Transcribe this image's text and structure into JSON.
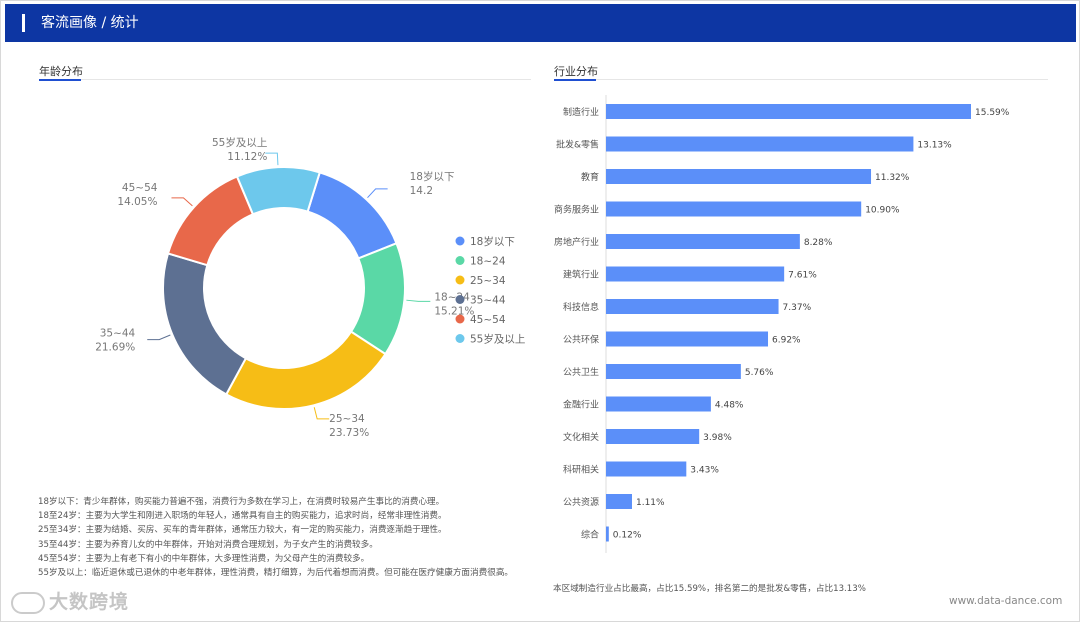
{
  "header": {
    "title": "客流画像 / 统计"
  },
  "left_section": {
    "title": "年龄分布"
  },
  "right_section": {
    "title": "行业分布"
  },
  "notes": [
    "18岁以下：青少年群体，购买能力普遍不强，消费行为多数在学习上，在消费时较易产生事比的消费心理。",
    "18至24岁：主要为大学生和刚进入职场的年轻人，通常具有自主的购买能力，追求时尚，经常非理性消费。",
    "25至34岁：主要为结婚、买房、买车的青年群体，通常压力较大，有一定的购买能力，消费逐渐趋于理性。",
    "35至44岁：主要为养育儿女的中年群体，开始对消费合理规划，为子女产生的消费较多。",
    "45至54岁：主要为上有老下有小的中年群体，大多理性消费，为父母产生的消费较多。",
    "55岁及以上：临近退休或已退休的中老年群体，理性消费，精打细算，为后代着想而消费。但可能在医疗健康方面消费很高。"
  ],
  "footnote": "本区域制造行业占比最高，占比15.59%，排名第二的是批发&零售，占比13.13%",
  "brand": "www.data-dance.com",
  "watermark": "大数跨境",
  "chart_data": [
    {
      "type": "pie",
      "title": "年龄分布",
      "legend_position": "right",
      "donut": true,
      "slices": [
        {
          "label": "18岁以下",
          "value": 14.2,
          "value_label": "14.2",
          "color": "#5b8ff9"
        },
        {
          "label": "18~24",
          "value": 15.21,
          "value_label": "15.21%",
          "color": "#5ad8a6"
        },
        {
          "label": "25~34",
          "value": 23.73,
          "value_label": "23.73%",
          "color": "#f6bd16"
        },
        {
          "label": "35~44",
          "value": 21.69,
          "value_label": "21.69%",
          "color": "#5d7092"
        },
        {
          "label": "45~54",
          "value": 14.05,
          "value_label": "14.05%",
          "color": "#e8684a"
        },
        {
          "label": "55岁及以上",
          "value": 11.12,
          "value_label": "11.12%",
          "color": "#6dc8ec"
        }
      ]
    },
    {
      "type": "bar",
      "orientation": "horizontal",
      "title": "行业分布",
      "color": "#5b8ff9",
      "categories": [
        "制造行业",
        "批发&零售",
        "教育",
        "商务服务业",
        "房地产行业",
        "建筑行业",
        "科技信息",
        "公共环保",
        "公共卫生",
        "金融行业",
        "文化相关",
        "科研相关",
        "公共资源",
        "综合"
      ],
      "values": [
        15.59,
        13.13,
        11.32,
        10.9,
        8.28,
        7.61,
        7.37,
        6.92,
        5.76,
        4.48,
        3.98,
        3.43,
        1.11,
        0.12
      ],
      "value_labels": [
        "15.59%",
        "13.13%",
        "11.32%",
        "10.90%",
        "8.28%",
        "7.61%",
        "7.37%",
        "6.92%",
        "5.76%",
        "4.48%",
        "3.98%",
        "3.43%",
        "1.11%",
        "0.12%"
      ]
    }
  ]
}
